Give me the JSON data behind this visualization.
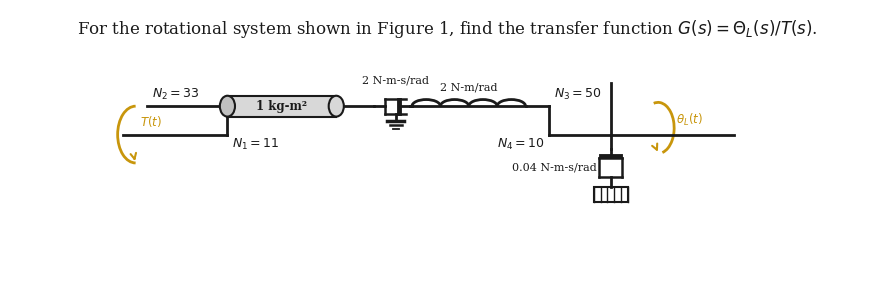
{
  "title_text": "For the rotational system shown in Figure 1, find the transfer function $G(s) = \\Theta_L(s)/T(s)$.",
  "title_fontsize": 12,
  "fig_width": 8.94,
  "fig_height": 2.89,
  "background": "#ffffff",
  "gold_color": "#C8960C",
  "dark_color": "#1a1a1a",
  "N1_label": "$N_1 = 11$",
  "N2_label": "$N_2 = 33$",
  "N3_label": "$N_3 = 50$",
  "N4_label": "$N_4 = 10$",
  "J_label": "1 kg-m²",
  "D_label": "2 N-m-s/rad",
  "K_label": "2 N-m/rad",
  "D2_label": "0.04 N-m-s/rad",
  "T_label": "$T(t)$",
  "theta_label": "$\\theta_L(t)$"
}
